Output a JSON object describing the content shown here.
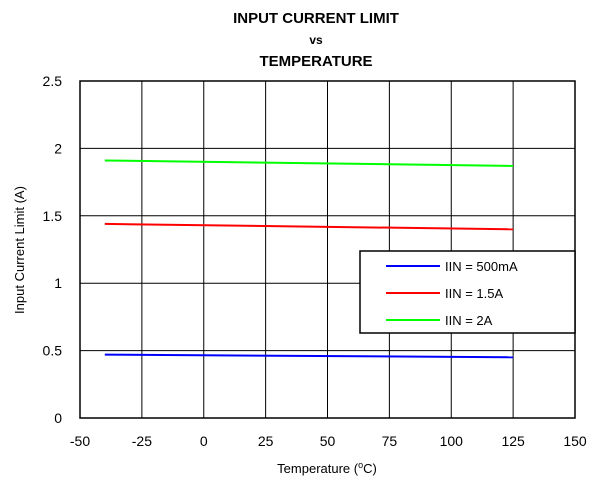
{
  "chart_data": {
    "type": "line",
    "title_line1": "INPUT CURRENT LIMIT",
    "title_line2": "vs",
    "title_line3": "TEMPERATURE",
    "xlabel_prefix": "Temperature (",
    "xlabel_sup": "o",
    "xlabel_suffix": "C)",
    "ylabel": "Input Current Limit (A)",
    "xlim": [
      -50,
      150
    ],
    "ylim": [
      0,
      2.5
    ],
    "xticks": [
      -50,
      -25,
      0,
      25,
      50,
      75,
      100,
      125,
      150
    ],
    "yticks": [
      0,
      0.5,
      1,
      1.5,
      2,
      2.5
    ],
    "xtick_labels": [
      "-50",
      "-25",
      "0",
      "25",
      "50",
      "75",
      "100",
      "125",
      "150"
    ],
    "ytick_labels": [
      "0",
      "0.5",
      "1",
      "1.5",
      "2",
      "2.5"
    ],
    "grid": true,
    "legend_position": "right",
    "series": [
      {
        "name": "IIN = 500mA",
        "color": "#0000ff",
        "x": [
          -40,
          125
        ],
        "y": [
          0.47,
          0.45
        ]
      },
      {
        "name": "IIN = 1.5A",
        "color": "#ff0000",
        "x": [
          -40,
          125
        ],
        "y": [
          1.44,
          1.4
        ]
      },
      {
        "name": "IIN = 2A",
        "color": "#00ff00",
        "x": [
          -40,
          125
        ],
        "y": [
          1.91,
          1.87
        ]
      }
    ]
  }
}
